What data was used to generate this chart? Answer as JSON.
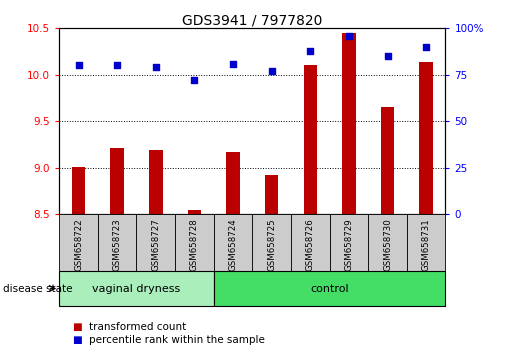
{
  "title": "GDS3941 / 7977820",
  "samples": [
    "GSM658722",
    "GSM658723",
    "GSM658727",
    "GSM658728",
    "GSM658724",
    "GSM658725",
    "GSM658726",
    "GSM658729",
    "GSM658730",
    "GSM658731"
  ],
  "red_values": [
    9.01,
    9.21,
    9.19,
    8.54,
    9.17,
    8.92,
    10.1,
    10.45,
    9.65,
    10.14
  ],
  "blue_values": [
    80,
    80,
    79,
    72,
    81,
    77,
    88,
    96,
    85,
    90
  ],
  "ylim_left": [
    8.5,
    10.5
  ],
  "yticks_left": [
    8.5,
    9.0,
    9.5,
    10.0,
    10.5
  ],
  "ylim_right": [
    0,
    100
  ],
  "yticks_right": [
    0,
    25,
    50,
    75,
    100
  ],
  "ytick_labels_right": [
    "0",
    "25",
    "50",
    "75",
    "100%"
  ],
  "group1_label": "vaginal dryness",
  "group2_label": "control",
  "group1_count": 4,
  "group2_count": 6,
  "legend_red": "transformed count",
  "legend_blue": "percentile rank within the sample",
  "disease_state_label": "disease state",
  "bar_color": "#BB0000",
  "dot_color": "#0000CC",
  "group1_bg": "#AAEEBB",
  "group2_bg": "#44DD66",
  "tick_bg": "#CCCCCC",
  "bar_width": 0.35,
  "title_fontsize": 10
}
